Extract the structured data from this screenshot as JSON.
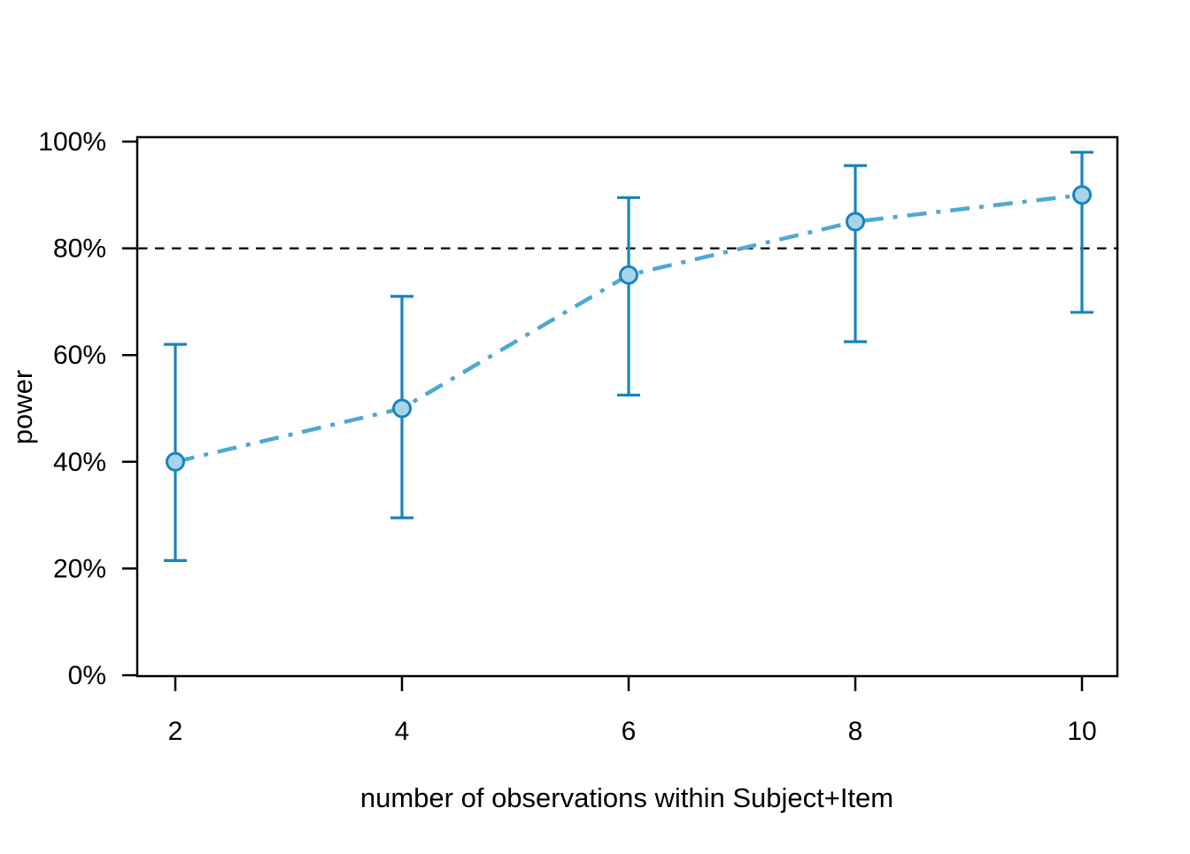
{
  "chart_data": {
    "type": "line",
    "title": "",
    "xlabel": "number of observations within Subject+Item",
    "ylabel": "power",
    "x": [
      2,
      4,
      6,
      8,
      10
    ],
    "series": [
      {
        "name": "power",
        "values_pct": [
          40,
          50,
          75,
          85,
          90
        ],
        "ci_low_pct": [
          21.5,
          29.5,
          52.5,
          62.5,
          68
        ],
        "ci_high_pct": [
          62,
          71,
          89.5,
          95.5,
          98
        ]
      }
    ],
    "threshold_pct": 80,
    "x_ticks": [
      "2",
      "4",
      "6",
      "8",
      "10"
    ],
    "y_ticks": [
      "0%",
      "20%",
      "40%",
      "60%",
      "80%",
      "100%"
    ],
    "xlim": [
      1.68,
      10.32
    ],
    "ylim": [
      0,
      100
    ],
    "grid": "off",
    "legend": "none",
    "style": {
      "line_color": "#4FA8D2",
      "line_pattern": "dash-dot",
      "ci_color": "#1784BE",
      "marker_fill": "#A9D4E8",
      "marker_stroke": "#1784BE",
      "threshold_color": "#000000",
      "threshold_pattern": "dashed",
      "axis_color": "#000000",
      "background": "#FFFFFF"
    }
  }
}
